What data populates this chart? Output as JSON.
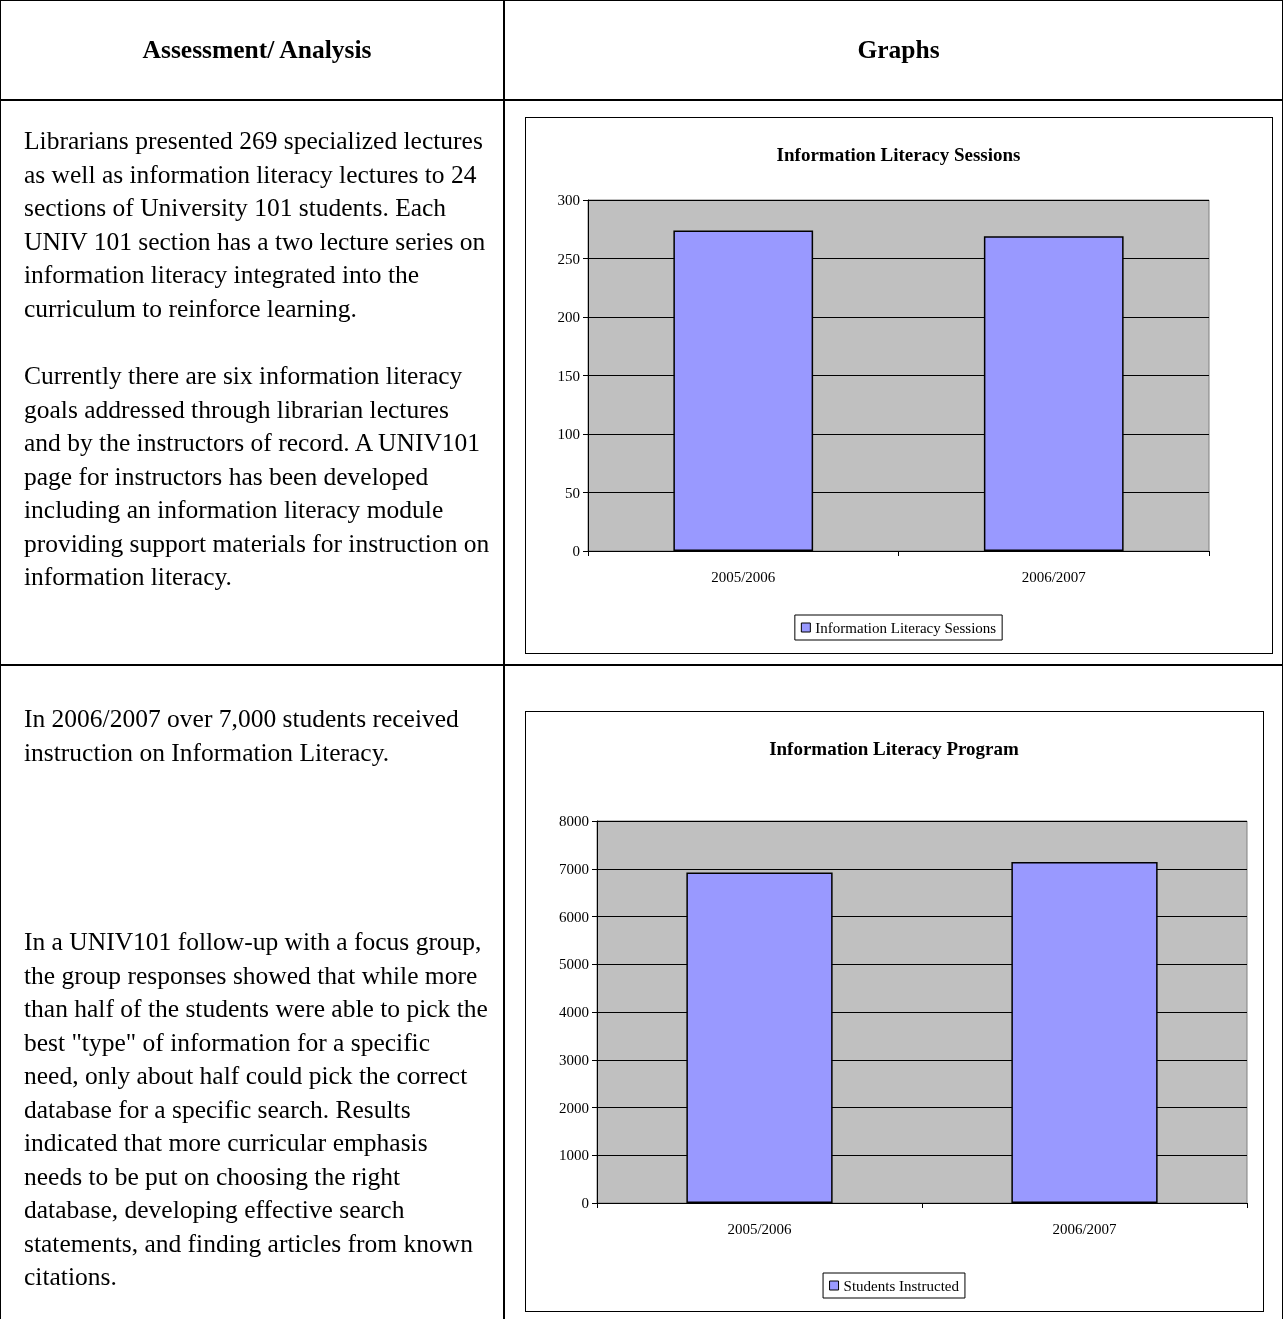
{
  "chart_data": [
    {
      "type": "other",
      "title": "Assessment/ Analysis"
    },
    {
      "type": "other",
      "title": "Graphs"
    },
    {
      "type": "other",
      "annotations": [
        "Librarians presented 269 specialized lectures as well as information literacy lectures to 24 sections of University 101 students. Each UNIV 101 section has a two lecture series on information literacy integrated into the curriculum to reinforce learning.",
        "Currently there are six information literacy goals addressed through librarian lectures and by the instructors of record.  A UNIV101 page for instructors has been developed including an information literacy module providing support materials for instruction on information literacy."
      ]
    },
    {
      "type": "bar",
      "title": "Information Literacy Sessions",
      "categories": [
        "2005/2006",
        "2006/2007"
      ],
      "series": [
        {
          "name": "Information Literacy Sessions",
          "color": "#9999ff",
          "values": [
            274,
            269
          ]
        }
      ],
      "ylim": [
        0,
        300
      ],
      "yticks": [
        0,
        50,
        100,
        150,
        200,
        250,
        300
      ],
      "grid": "y",
      "legend": "bottom"
    },
    {
      "type": "other",
      "annotations": [
        "In 2006/2007 over 7,000 students received instruction on Information Literacy.",
        "In a UNIV101 follow-up with a focus group, the group responses showed that while more than half of the students were able to pick the best \"type\" of information for a specific need, only about half could pick the correct database for a specific search.  Results indicated that more curricular emphasis needs to be put on choosing the right database, developing effective search statements, and finding articles from known citations."
      ]
    },
    {
      "type": "bar",
      "title": "Information Literacy Program",
      "categories": [
        "2005/2006",
        "2006/2007"
      ],
      "series": [
        {
          "name": "Students Instructed",
          "color": "#9999ff",
          "values": [
            6920,
            7140
          ]
        }
      ],
      "ylim": [
        0,
        8000
      ],
      "yticks": [
        0,
        1000,
        2000,
        3000,
        4000,
        5000,
        6000,
        7000,
        8000
      ],
      "grid": "y",
      "legend": "bottom"
    }
  ]
}
